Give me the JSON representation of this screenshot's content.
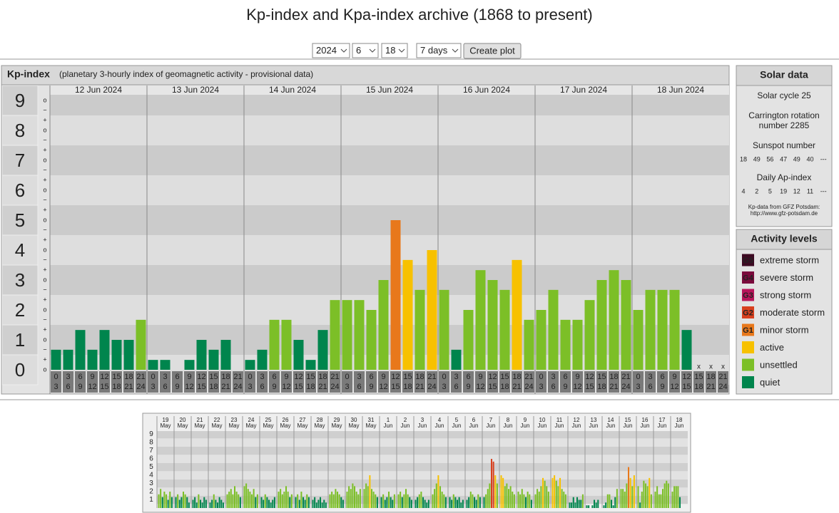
{
  "header": {
    "title": "Kp-index and Kpa-index archive (1868 to present)"
  },
  "controls": {
    "year": "2024",
    "month": "6",
    "day": "18",
    "period": "7 days",
    "button": "Create plot"
  },
  "chart_data": [
    {
      "type": "bar",
      "title": "Kp-index",
      "subtitle": "(planetary 3-hourly index of geomagnetic activity - provisional data)",
      "days": [
        "12 Jun 2024",
        "13 Jun 2024",
        "14 Jun 2024",
        "15 Jun 2024",
        "16 Jun 2024",
        "17 Jun 2024",
        "18 Jun 2024"
      ],
      "interval_starts": [
        "0",
        "3",
        "6",
        "9",
        "12",
        "15",
        "18",
        "21"
      ],
      "interval_ends": [
        "3",
        "6",
        "9",
        "12",
        "15",
        "18",
        "21",
        "24"
      ],
      "values": [
        [
          0.67,
          0.67,
          1.33,
          0.67,
          1.33,
          1,
          1,
          1.67
        ],
        [
          0.33,
          0.33,
          0,
          0.33,
          1,
          0.67,
          1,
          0
        ],
        [
          0.33,
          0.67,
          1.67,
          1.67,
          1,
          0.33,
          1.33,
          2.33
        ],
        [
          2.33,
          2.33,
          2,
          3,
          5,
          3.67,
          2.67,
          4
        ],
        [
          2.67,
          0.67,
          2,
          3.33,
          3,
          2.67,
          3.67,
          1.67
        ],
        [
          2,
          2.67,
          1.67,
          1.67,
          2.33,
          3,
          3.33,
          3
        ],
        [
          2,
          2.67,
          2.67,
          2.67,
          1.33,
          null,
          null,
          null
        ]
      ],
      "colors": [
        [
          "#00854d",
          "#00854d",
          "#00854d",
          "#00854d",
          "#00854d",
          "#00854d",
          "#00854d",
          "#7cbf27"
        ],
        [
          "#00854d",
          "#00854d",
          "#00854d",
          "#00854d",
          "#00854d",
          "#00854d",
          "#00854d",
          "#00854d"
        ],
        [
          "#00854d",
          "#00854d",
          "#7cbf27",
          "#7cbf27",
          "#00854d",
          "#00854d",
          "#00854d",
          "#7cbf27"
        ],
        [
          "#7cbf27",
          "#7cbf27",
          "#7cbf27",
          "#7cbf27",
          "#e8781b",
          "#f7c100",
          "#7cbf27",
          "#f7c100"
        ],
        [
          "#7cbf27",
          "#00854d",
          "#7cbf27",
          "#7cbf27",
          "#7cbf27",
          "#7cbf27",
          "#f7c100",
          "#7cbf27"
        ],
        [
          "#7cbf27",
          "#7cbf27",
          "#7cbf27",
          "#7cbf27",
          "#7cbf27",
          "#7cbf27",
          "#7cbf27",
          "#7cbf27"
        ],
        [
          "#7cbf27",
          "#7cbf27",
          "#7cbf27",
          "#7cbf27",
          "#00854d",
          null,
          null,
          null
        ]
      ],
      "missing_label": "x",
      "ylim": [
        -0.5,
        9.5
      ],
      "yticks": [
        0,
        1,
        2,
        3,
        4,
        5,
        6,
        7,
        8,
        9
      ],
      "minor_labels": [
        "−",
        "o",
        "+"
      ]
    },
    {
      "type": "bar",
      "days": [
        "19",
        "20",
        "21",
        "22",
        "23",
        "24",
        "25",
        "26",
        "27",
        "28",
        "29",
        "30",
        "31",
        "1",
        "2",
        "3",
        "4",
        "5",
        "6",
        "7",
        "8",
        "9",
        "10",
        "11",
        "12",
        "13",
        "14",
        "15",
        "16",
        "17",
        "18"
      ],
      "months": [
        "May",
        "May",
        "May",
        "May",
        "May",
        "May",
        "May",
        "May",
        "May",
        "May",
        "May",
        "May",
        "May",
        "Jun",
        "Jun",
        "Jun",
        "Jun",
        "Jun",
        "Jun",
        "Jun",
        "Jun",
        "Jun",
        "Jun",
        "Jun",
        "Jun",
        "Jun",
        "Jun",
        "Jun",
        "Jun",
        "Jun",
        "Jun"
      ],
      "highlight_color": "#2a9a2a",
      "values": [
        [
          1.67,
          2.33,
          1.33,
          2,
          1.67,
          1,
          2,
          1.33
        ],
        [
          1.33,
          1.67,
          1,
          1.33,
          2,
          1.67,
          1.33,
          0.67
        ],
        [
          1,
          1.33,
          0.67,
          1.67,
          1,
          0.67,
          1.33,
          1
        ],
        [
          0.67,
          1,
          1.67,
          1,
          0.67,
          1.33,
          1,
          0.67
        ],
        [
          1.67,
          2,
          2.33,
          1.67,
          2.67,
          2,
          1.67,
          1.33
        ],
        [
          2.67,
          3,
          2.33,
          2,
          1.67,
          2.33,
          1.33,
          1.67
        ],
        [
          1.33,
          1,
          1.67,
          1.33,
          1,
          0.67,
          1,
          1.33
        ],
        [
          2,
          2.33,
          1.67,
          2,
          2.67,
          2,
          1.33,
          1.67
        ],
        [
          1.33,
          1.67,
          1,
          2,
          1.33,
          1,
          1.67,
          1.33
        ],
        [
          1,
          1.33,
          0.67,
          1,
          1.33,
          0.67,
          1,
          0.67
        ],
        [
          1.67,
          2,
          1.67,
          2.33,
          2,
          1.67,
          1.33,
          1
        ],
        [
          2,
          2.67,
          2.33,
          3,
          2.67,
          2,
          1.67,
          2.33
        ],
        [
          2.33,
          3,
          2.67,
          4,
          2.33,
          2,
          1.67,
          1.33
        ],
        [
          1.33,
          1.67,
          1,
          1.33,
          2,
          1.33,
          1,
          1.67
        ],
        [
          1.67,
          2,
          1.33,
          1.67,
          2.33,
          1.67,
          1.33,
          1
        ],
        [
          1,
          1.33,
          1.67,
          2,
          1.33,
          1,
          0.67,
          1
        ],
        [
          1.67,
          2.33,
          3,
          4,
          2.67,
          2,
          1.67,
          1.33
        ],
        [
          1.33,
          1,
          1.67,
          1.33,
          1,
          1.33,
          0.67,
          1
        ],
        [
          1,
          1.33,
          2,
          1.67,
          1.33,
          1,
          1.67,
          1.33
        ],
        [
          1.33,
          1.67,
          2.33,
          3,
          6,
          5.67,
          4,
          3
        ],
        [
          4,
          3.67,
          2.67,
          3,
          2.33,
          2.67,
          2,
          1.67
        ],
        [
          2,
          1.67,
          2.33,
          1.67,
          1.33,
          2,
          1.67,
          1
        ],
        [
          1.67,
          2.33,
          2,
          2.67,
          3.67,
          3.33,
          2.67,
          2
        ],
        [
          3.67,
          4,
          3.33,
          2.67,
          3.67,
          2.33,
          2,
          1.67
        ],
        [
          0.67,
          0.67,
          1.33,
          0.67,
          1.33,
          1,
          1,
          1.67
        ],
        [
          0.33,
          0.33,
          0,
          0.33,
          1,
          0.67,
          1,
          0
        ],
        [
          0.33,
          0.67,
          1.67,
          1.67,
          1,
          0.33,
          1.33,
          2.33
        ],
        [
          2.33,
          2.33,
          2,
          3,
          5,
          3.67,
          2.67,
          4
        ],
        [
          2.67,
          0.67,
          2,
          3.33,
          3,
          2.67,
          3.67,
          1.67
        ],
        [
          2,
          2.67,
          1.67,
          1.67,
          2.33,
          3,
          3.33,
          3
        ],
        [
          2,
          2.67,
          2.67,
          2.67,
          1.33,
          null,
          null,
          null
        ]
      ],
      "colors": [
        [
          "#7cbf27",
          "#7cbf27",
          "#00854d",
          "#7cbf27",
          "#7cbf27",
          "#00854d",
          "#7cbf27",
          "#00854d"
        ],
        [
          "#00854d",
          "#7cbf27",
          "#00854d",
          "#00854d",
          "#7cbf27",
          "#7cbf27",
          "#00854d",
          "#00854d"
        ],
        [
          "#00854d",
          "#00854d",
          "#00854d",
          "#7cbf27",
          "#00854d",
          "#00854d",
          "#00854d",
          "#00854d"
        ],
        [
          "#00854d",
          "#00854d",
          "#7cbf27",
          "#00854d",
          "#00854d",
          "#00854d",
          "#00854d",
          "#00854d"
        ],
        [
          "#7cbf27",
          "#7cbf27",
          "#7cbf27",
          "#7cbf27",
          "#7cbf27",
          "#7cbf27",
          "#7cbf27",
          "#00854d"
        ],
        [
          "#7cbf27",
          "#7cbf27",
          "#7cbf27",
          "#7cbf27",
          "#7cbf27",
          "#7cbf27",
          "#00854d",
          "#7cbf27"
        ],
        [
          "#00854d",
          "#00854d",
          "#7cbf27",
          "#00854d",
          "#00854d",
          "#00854d",
          "#00854d",
          "#00854d"
        ],
        [
          "#7cbf27",
          "#7cbf27",
          "#7cbf27",
          "#7cbf27",
          "#7cbf27",
          "#7cbf27",
          "#00854d",
          "#7cbf27"
        ],
        [
          "#00854d",
          "#7cbf27",
          "#00854d",
          "#7cbf27",
          "#00854d",
          "#00854d",
          "#7cbf27",
          "#00854d"
        ],
        [
          "#00854d",
          "#00854d",
          "#00854d",
          "#00854d",
          "#00854d",
          "#00854d",
          "#00854d",
          "#00854d"
        ],
        [
          "#7cbf27",
          "#7cbf27",
          "#7cbf27",
          "#7cbf27",
          "#7cbf27",
          "#7cbf27",
          "#00854d",
          "#00854d"
        ],
        [
          "#7cbf27",
          "#7cbf27",
          "#7cbf27",
          "#7cbf27",
          "#7cbf27",
          "#7cbf27",
          "#7cbf27",
          "#7cbf27"
        ],
        [
          "#7cbf27",
          "#7cbf27",
          "#7cbf27",
          "#f7c100",
          "#7cbf27",
          "#7cbf27",
          "#7cbf27",
          "#00854d"
        ],
        [
          "#00854d",
          "#7cbf27",
          "#00854d",
          "#00854d",
          "#7cbf27",
          "#00854d",
          "#00854d",
          "#7cbf27"
        ],
        [
          "#7cbf27",
          "#7cbf27",
          "#00854d",
          "#7cbf27",
          "#7cbf27",
          "#7cbf27",
          "#00854d",
          "#00854d"
        ],
        [
          "#00854d",
          "#00854d",
          "#7cbf27",
          "#7cbf27",
          "#00854d",
          "#00854d",
          "#00854d",
          "#00854d"
        ],
        [
          "#7cbf27",
          "#7cbf27",
          "#7cbf27",
          "#f7c100",
          "#7cbf27",
          "#7cbf27",
          "#7cbf27",
          "#00854d"
        ],
        [
          "#00854d",
          "#00854d",
          "#7cbf27",
          "#00854d",
          "#00854d",
          "#00854d",
          "#00854d",
          "#00854d"
        ],
        [
          "#00854d",
          "#00854d",
          "#7cbf27",
          "#7cbf27",
          "#00854d",
          "#00854d",
          "#7cbf27",
          "#00854d"
        ],
        [
          "#00854d",
          "#7cbf27",
          "#7cbf27",
          "#7cbf27",
          "#d8401e",
          "#d8401e",
          "#f7c100",
          "#7cbf27"
        ],
        [
          "#f7c100",
          "#f7c100",
          "#7cbf27",
          "#7cbf27",
          "#7cbf27",
          "#7cbf27",
          "#7cbf27",
          "#7cbf27"
        ],
        [
          "#7cbf27",
          "#7cbf27",
          "#7cbf27",
          "#7cbf27",
          "#00854d",
          "#7cbf27",
          "#7cbf27",
          "#00854d"
        ],
        [
          "#7cbf27",
          "#7cbf27",
          "#7cbf27",
          "#7cbf27",
          "#f7c100",
          "#7cbf27",
          "#7cbf27",
          "#7cbf27"
        ],
        [
          "#f7c100",
          "#f7c100",
          "#7cbf27",
          "#7cbf27",
          "#f7c100",
          "#7cbf27",
          "#7cbf27",
          "#7cbf27"
        ],
        [
          "#00854d",
          "#00854d",
          "#00854d",
          "#00854d",
          "#00854d",
          "#00854d",
          "#00854d",
          "#7cbf27"
        ],
        [
          "#00854d",
          "#00854d",
          "#00854d",
          "#00854d",
          "#00854d",
          "#00854d",
          "#00854d",
          "#00854d"
        ],
        [
          "#00854d",
          "#00854d",
          "#7cbf27",
          "#7cbf27",
          "#00854d",
          "#00854d",
          "#00854d",
          "#7cbf27"
        ],
        [
          "#7cbf27",
          "#7cbf27",
          "#7cbf27",
          "#7cbf27",
          "#e8781b",
          "#f7c100",
          "#7cbf27",
          "#f7c100"
        ],
        [
          "#7cbf27",
          "#00854d",
          "#7cbf27",
          "#7cbf27",
          "#7cbf27",
          "#7cbf27",
          "#f7c100",
          "#7cbf27"
        ],
        [
          "#7cbf27",
          "#7cbf27",
          "#7cbf27",
          "#7cbf27",
          "#7cbf27",
          "#7cbf27",
          "#7cbf27",
          "#7cbf27"
        ],
        [
          "#7cbf27",
          "#7cbf27",
          "#7cbf27",
          "#7cbf27",
          "#00854d",
          null,
          null,
          null
        ]
      ],
      "ylim": [
        0,
        9.4
      ],
      "yticks": [
        1,
        2,
        3,
        4,
        5,
        6,
        7,
        8,
        9
      ]
    }
  ],
  "solar_data": {
    "title": "Solar data",
    "cycle": "Solar cycle 25",
    "carrington": [
      "Carrington rotation",
      "number 2285"
    ],
    "sunspot_title": "Sunspot number",
    "sunspot": [
      18,
      49,
      56,
      47,
      49,
      40,
      "---"
    ],
    "ap_title": "Daily Ap-index",
    "ap": [
      4,
      2,
      5,
      19,
      12,
      11,
      "---"
    ],
    "source": [
      "Kp-data from GFZ Potsdam:",
      "http://www.gfz-potsdam.de"
    ]
  },
  "activity_levels": {
    "title": "Activity levels",
    "items": [
      {
        "code": "G5",
        "name": "extreme storm",
        "color": "#3d0a22"
      },
      {
        "code": "G4",
        "name": "severe storm",
        "color": "#7a0a3c"
      },
      {
        "code": "G3",
        "name": "strong storm",
        "color": "#b8155a"
      },
      {
        "code": "G2",
        "name": "moderate storm",
        "color": "#d8401e"
      },
      {
        "code": "G1",
        "name": "minor storm",
        "color": "#e8781b"
      },
      {
        "code": null,
        "name": "active",
        "color": "#f7c100"
      },
      {
        "code": null,
        "name": "unsettled",
        "color": "#7cbf27"
      },
      {
        "code": null,
        "name": "quiet",
        "color": "#00854d"
      }
    ]
  }
}
